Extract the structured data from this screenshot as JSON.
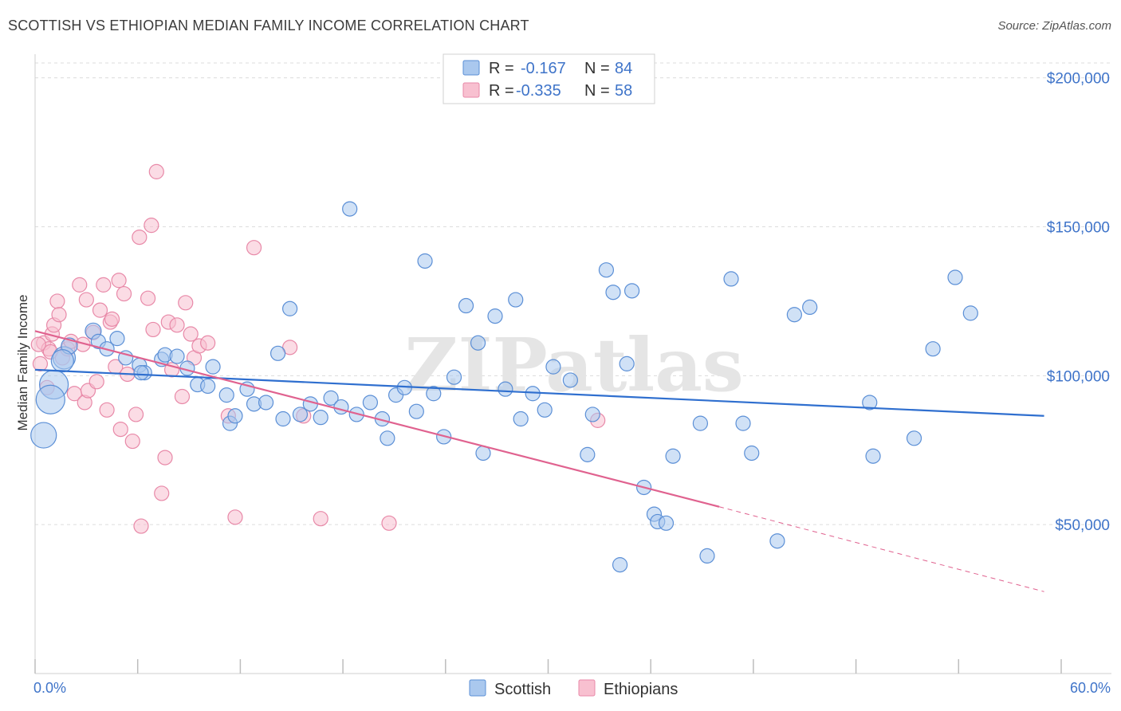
{
  "header": {
    "title": "SCOTTISH VS ETHIOPIAN MEDIAN FAMILY INCOME CORRELATION CHART",
    "source": "Source: ZipAtlas.com"
  },
  "watermark": "ZIPatlas",
  "colors": {
    "scottish_fill": "#aac8ee",
    "scottish_stroke": "#5b8fd6",
    "scottish_line": "#2f6fcf",
    "ethiopian_fill": "#f8c0d0",
    "ethiopian_stroke": "#e889a8",
    "ethiopian_line": "#e0628f",
    "grid": "#dcdcdc",
    "tick_label": "#3f74c9"
  },
  "stats_legend": [
    {
      "r_label": "R =",
      "r_value": "-0.167",
      "n_label": "N =",
      "n_value": "84"
    },
    {
      "r_label": "R =",
      "r_value": "-0.335",
      "n_label": "N =",
      "n_value": "58"
    }
  ],
  "chart_data": {
    "type": "scatter",
    "title": "SCOTTISH VS ETHIOPIAN MEDIAN FAMILY INCOME CORRELATION CHART",
    "xlabel": "",
    "ylabel": "Median Family Income",
    "xlim": [
      0,
      60
    ],
    "ylim": [
      0,
      205000
    ],
    "x_tick_labels": [
      "0.0%",
      "60.0%"
    ],
    "y_ticks": [
      50000,
      100000,
      150000,
      200000
    ],
    "y_tick_labels": [
      "$50,000",
      "$100,000",
      "$150,000",
      "$200,000"
    ],
    "grid": true,
    "legend_position": "top-center",
    "series": [
      {
        "name": "Scottish",
        "trend": {
          "x0": 0,
          "y0": 102000,
          "x1": 59,
          "y1": 86500
        },
        "points": [
          [
            0.5,
            80000,
            16
          ],
          [
            1.1,
            97000,
            18
          ],
          [
            0.9,
            92000,
            18
          ],
          [
            1.7,
            106000,
            14
          ],
          [
            2.0,
            110000,
            10
          ],
          [
            3.4,
            115000,
            10
          ],
          [
            3.7,
            111500,
            9
          ],
          [
            4.2,
            109000,
            9
          ],
          [
            4.8,
            112500,
            9
          ],
          [
            5.3,
            106000,
            9
          ],
          [
            6.1,
            103500,
            9
          ],
          [
            6.4,
            101000,
            9
          ],
          [
            7.4,
            105500,
            9
          ],
          [
            7.6,
            107000,
            9
          ],
          [
            8.3,
            106500,
            9
          ],
          [
            8.9,
            102500,
            9
          ],
          [
            9.5,
            97000,
            9
          ],
          [
            10.1,
            96500,
            9
          ],
          [
            10.4,
            103000,
            9
          ],
          [
            11.2,
            93500,
            9
          ],
          [
            11.4,
            84000,
            9
          ],
          [
            11.7,
            86500,
            9
          ],
          [
            12.4,
            95500,
            9
          ],
          [
            12.8,
            90500,
            9
          ],
          [
            13.5,
            91000,
            9
          ],
          [
            14.2,
            107500,
            9
          ],
          [
            14.5,
            85500,
            9
          ],
          [
            14.9,
            122500,
            9
          ],
          [
            15.5,
            87000,
            9
          ],
          [
            16.1,
            90500,
            9
          ],
          [
            16.7,
            86000,
            9
          ],
          [
            17.3,
            92500,
            9
          ],
          [
            17.9,
            89500,
            9
          ],
          [
            18.4,
            156000,
            9
          ],
          [
            18.8,
            87000,
            9
          ],
          [
            19.6,
            91000,
            9
          ],
          [
            20.3,
            85500,
            9
          ],
          [
            20.6,
            79000,
            9
          ],
          [
            21.1,
            93500,
            9
          ],
          [
            21.6,
            96000,
            9
          ],
          [
            22.3,
            88000,
            9
          ],
          [
            22.8,
            138500,
            9
          ],
          [
            23.3,
            94000,
            9
          ],
          [
            23.9,
            79500,
            9
          ],
          [
            24.5,
            99500,
            9
          ],
          [
            25.2,
            123500,
            9
          ],
          [
            25.9,
            111000,
            9
          ],
          [
            26.2,
            74000,
            9
          ],
          [
            26.9,
            120000,
            9
          ],
          [
            27.5,
            95500,
            9
          ],
          [
            28.1,
            125500,
            9
          ],
          [
            28.4,
            85500,
            9
          ],
          [
            29.1,
            94000,
            9
          ],
          [
            29.8,
            88500,
            9
          ],
          [
            30.3,
            103000,
            9
          ],
          [
            31.3,
            98500,
            9
          ],
          [
            32.3,
            73500,
            9
          ],
          [
            32.6,
            87000,
            9
          ],
          [
            33.4,
            135500,
            9
          ],
          [
            33.8,
            128000,
            9
          ],
          [
            34.2,
            36500,
            9
          ],
          [
            34.6,
            104000,
            9
          ],
          [
            34.9,
            128500,
            9
          ],
          [
            35.6,
            62500,
            9
          ],
          [
            36.2,
            53500,
            9
          ],
          [
            36.4,
            51000,
            9
          ],
          [
            36.9,
            50500,
            9
          ],
          [
            37.3,
            73000,
            9
          ],
          [
            38.9,
            84000,
            9
          ],
          [
            39.3,
            39500,
            9
          ],
          [
            40.7,
            132500,
            9
          ],
          [
            41.4,
            84000,
            9
          ],
          [
            41.9,
            74000,
            9
          ],
          [
            43.4,
            44500,
            9
          ],
          [
            44.4,
            120500,
            9
          ],
          [
            45.3,
            123000,
            9
          ],
          [
            48.8,
            91000,
            9
          ],
          [
            49.0,
            73000,
            9
          ],
          [
            51.4,
            79000,
            9
          ],
          [
            52.5,
            109000,
            9
          ],
          [
            53.8,
            133000,
            9
          ],
          [
            54.7,
            121000,
            9
          ],
          [
            6.2,
            101000,
            9
          ],
          [
            1.6,
            105000,
            14
          ]
        ]
      },
      {
        "name": "Ethiopians",
        "trend": {
          "x0": 0,
          "y0": 115000,
          "x1": 40,
          "y1": 56000
        },
        "trend_dashed": {
          "x0": 40,
          "y0": 56000,
          "x1": 59,
          "y1": 27500
        },
        "points": [
          [
            0.3,
            104000,
            9
          ],
          [
            0.5,
            111000,
            9
          ],
          [
            0.7,
            96000,
            9
          ],
          [
            0.8,
            109000,
            9
          ],
          [
            0.9,
            108000,
            9
          ],
          [
            1.0,
            114000,
            9
          ],
          [
            1.1,
            117000,
            9
          ],
          [
            1.3,
            125000,
            9
          ],
          [
            1.4,
            120500,
            9
          ],
          [
            1.6,
            106000,
            9
          ],
          [
            1.9,
            109000,
            9
          ],
          [
            2.1,
            111500,
            9
          ],
          [
            2.3,
            94000,
            9
          ],
          [
            2.6,
            130500,
            9
          ],
          [
            2.8,
            110500,
            9
          ],
          [
            2.9,
            91000,
            9
          ],
          [
            3.0,
            125500,
            9
          ],
          [
            3.1,
            95000,
            9
          ],
          [
            3.4,
            114500,
            9
          ],
          [
            3.6,
            98000,
            9
          ],
          [
            3.8,
            122000,
            9
          ],
          [
            4.0,
            130500,
            9
          ],
          [
            4.2,
            88500,
            9
          ],
          [
            4.4,
            118000,
            9
          ],
          [
            4.5,
            119000,
            9
          ],
          [
            4.7,
            103000,
            9
          ],
          [
            4.9,
            132000,
            9
          ],
          [
            5.0,
            82000,
            9
          ],
          [
            5.2,
            127500,
            9
          ],
          [
            5.4,
            100500,
            9
          ],
          [
            5.7,
            78000,
            9
          ],
          [
            5.9,
            87000,
            9
          ],
          [
            6.1,
            146500,
            9
          ],
          [
            6.2,
            49500,
            9
          ],
          [
            6.6,
            126000,
            9
          ],
          [
            6.8,
            150500,
            9
          ],
          [
            6.9,
            115500,
            9
          ],
          [
            7.1,
            168500,
            9
          ],
          [
            7.4,
            60500,
            9
          ],
          [
            7.6,
            72500,
            9
          ],
          [
            7.8,
            118000,
            9
          ],
          [
            8.0,
            102000,
            9
          ],
          [
            8.3,
            117000,
            9
          ],
          [
            8.6,
            93000,
            9
          ],
          [
            8.8,
            124500,
            9
          ],
          [
            9.1,
            114000,
            9
          ],
          [
            9.3,
            106000,
            9
          ],
          [
            9.6,
            110000,
            9
          ],
          [
            10.1,
            111000,
            9
          ],
          [
            11.3,
            86500,
            9
          ],
          [
            11.7,
            52500,
            9
          ],
          [
            12.8,
            143000,
            9
          ],
          [
            14.9,
            109500,
            9
          ],
          [
            15.7,
            86500,
            9
          ],
          [
            16.7,
            52000,
            9
          ],
          [
            20.7,
            50500,
            9
          ],
          [
            32.9,
            85000,
            9
          ],
          [
            0.2,
            110500,
            9
          ]
        ]
      }
    ]
  },
  "bottom_legend": [
    "Scottish",
    "Ethiopians"
  ]
}
